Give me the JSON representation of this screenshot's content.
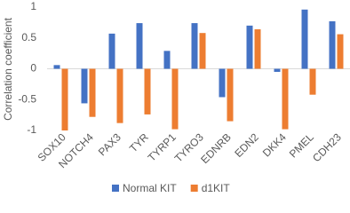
{
  "chart_data": {
    "type": "bar",
    "y_label": "Correlation coefficient",
    "categories": [
      "SOX10",
      "NOTCH4",
      "PAX3",
      "TYR",
      "TYRP1",
      "TYRO3",
      "EDNRB",
      "EDN2",
      "DKK4",
      "PMEL",
      "CDH23"
    ],
    "series": [
      {
        "name": "Normal KIT",
        "color": "#4472c4",
        "values": [
          0.06,
          -0.56,
          0.57,
          0.74,
          0.29,
          0.74,
          -0.46,
          0.7,
          -0.05,
          0.96,
          0.77
        ]
      },
      {
        "name": "d1KIT",
        "color": "#ed7d31",
        "values": [
          -1.0,
          -0.78,
          -0.88,
          -0.74,
          -0.98,
          0.58,
          -0.85,
          0.64,
          -0.98,
          -0.42,
          0.56
        ]
      }
    ],
    "ylim": [
      -1,
      1
    ],
    "yticks": [
      -1,
      -0.5,
      0,
      0.5,
      1
    ],
    "grid": false,
    "legend": "bottom"
  }
}
